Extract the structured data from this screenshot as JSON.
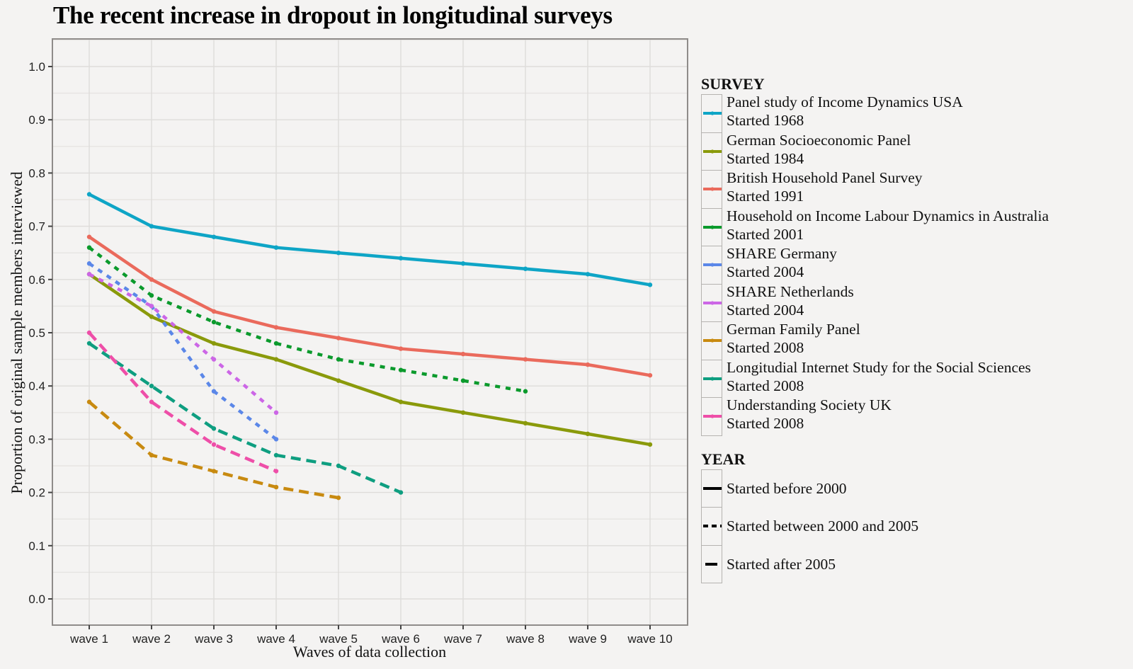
{
  "chart_data": {
    "type": "line",
    "title": "The recent increase in dropout in longitudinal surveys",
    "xlabel": "Waves of data collection",
    "ylabel": "Proportion of original sample members interviewed",
    "categories": [
      "wave 1",
      "wave 2",
      "wave 3",
      "wave 4",
      "wave 5",
      "wave 6",
      "wave 7",
      "wave 8",
      "wave 9",
      "wave 10"
    ],
    "yticks": [
      "0.0",
      "0.1",
      "0.2",
      "0.3",
      "0.4",
      "0.5",
      "0.6",
      "0.7",
      "0.8",
      "0.9",
      "1.0"
    ],
    "ylim": [
      -0.05,
      1.05
    ],
    "grid": true,
    "legend_position": "right",
    "series": [
      {
        "name": "Panel study of Income Dynamics USA",
        "started": "Started 1968",
        "color": "#0ea5c6",
        "year_group": "before2000",
        "values": [
          0.76,
          0.7,
          0.68,
          0.66,
          0.65,
          0.64,
          0.63,
          0.62,
          0.61,
          0.59
        ]
      },
      {
        "name": "German  Socioeconomic Panel",
        "started": "Started 1984",
        "color": "#8a9a0b",
        "year_group": "before2000",
        "values": [
          0.61,
          0.53,
          0.48,
          0.45,
          0.41,
          0.37,
          0.35,
          0.33,
          0.31,
          0.29
        ]
      },
      {
        "name": "British Household Panel Survey",
        "started": "Started 1991",
        "color": "#ea6a5c",
        "year_group": "before2000",
        "values": [
          0.68,
          0.6,
          0.54,
          0.51,
          0.49,
          0.47,
          0.46,
          0.45,
          0.44,
          0.42
        ]
      },
      {
        "name": "Household on Income Labour Dynamics in Australia",
        "started": "Started 2001",
        "color": "#0b9a2c",
        "year_group": "2000to2005",
        "values": [
          0.66,
          0.57,
          0.52,
          0.48,
          0.45,
          0.43,
          0.41,
          0.39,
          null,
          null
        ]
      },
      {
        "name": "SHARE Germany",
        "started": "Started 2004",
        "color": "#5b87e8",
        "year_group": "2000to2005",
        "values": [
          0.63,
          0.55,
          0.39,
          0.3,
          null,
          null,
          null,
          null,
          null,
          null
        ]
      },
      {
        "name": "SHARE Netherlands",
        "started": "Started 2004",
        "color": "#cc66e6",
        "year_group": "2000to2005",
        "values": [
          0.61,
          0.55,
          0.45,
          0.35,
          null,
          null,
          null,
          null,
          null,
          null
        ]
      },
      {
        "name": "German Family Panel",
        "started": "Started 2008",
        "color": "#c88a10",
        "year_group": "after2005",
        "values": [
          0.37,
          0.27,
          0.24,
          0.21,
          0.19,
          null,
          null,
          null,
          null,
          null
        ]
      },
      {
        "name": "Longitudial Internet Study for the Social Sciences",
        "started": "Started 2008",
        "color": "#0e9e80",
        "year_group": "after2005",
        "values": [
          0.48,
          0.4,
          0.32,
          0.27,
          0.25,
          0.2,
          null,
          null,
          null,
          null
        ]
      },
      {
        "name": "Understanding Society UK",
        "started": "Started 2008",
        "color": "#ee4ea8",
        "year_group": "after2005",
        "values": [
          0.5,
          0.37,
          0.29,
          0.24,
          null,
          null,
          null,
          null,
          null,
          null
        ]
      }
    ],
    "legend_survey_title": "SURVEY",
    "legend_year_title": "YEAR",
    "year_groups": [
      {
        "key": "before2000",
        "label": "Started before 2000",
        "style": "solid"
      },
      {
        "key": "2000to2005",
        "label": "Started between 2000 and 2005",
        "style": "dotted"
      },
      {
        "key": "after2005",
        "label": "Started after 2005",
        "style": "dashed"
      }
    ]
  }
}
